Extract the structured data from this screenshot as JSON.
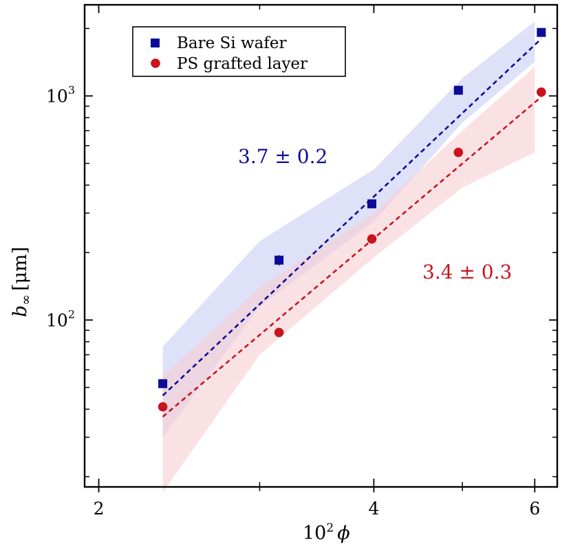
{
  "chart_data": {
    "type": "scatter",
    "xlabel_base": "10",
    "xlabel_exp": "2",
    "xlabel_var": "ϕ",
    "ylabel_var": "b",
    "ylabel_sub": "∞",
    "ylabel_unit": "[μm]",
    "xscale": "log",
    "yscale": "log",
    "xlim": [
      1.93,
      6.35
    ],
    "ylim": [
      18,
      2550
    ],
    "x_ticks": [
      {
        "value": 2,
        "label": "2"
      },
      {
        "value": 4,
        "label": "4"
      },
      {
        "value": 6,
        "label": "6"
      }
    ],
    "x_minor_ticks": [
      3,
      5
    ],
    "y_ticks": [
      {
        "value": 100,
        "base": "10",
        "exp": "2"
      },
      {
        "value": 1000,
        "base": "10",
        "exp": "3"
      }
    ],
    "y_minor_ticks": [
      20,
      30,
      40,
      50,
      60,
      70,
      80,
      90,
      200,
      300,
      400,
      500,
      600,
      700,
      800,
      900,
      2000
    ],
    "legend_position": "top-left",
    "series": [
      {
        "name": "Bare Si wafer",
        "marker": "square",
        "color": "#0c0c96",
        "band_color": "#c8cdf2",
        "x": [
          2.35,
          3.15,
          3.98,
          4.95,
          6.1
        ],
        "y": [
          52,
          185,
          330,
          1060,
          1920
        ],
        "yerr": [
          1.5,
          10,
          10,
          25,
          40
        ],
        "fit": {
          "x": [
            2.35,
            6.1
          ],
          "y": [
            46,
            1800
          ]
        },
        "band": {
          "x": [
            2.35,
            3.0,
            4.0,
            5.0,
            6.0
          ],
          "upper": [
            76,
            225,
            470,
            1200,
            2150
          ],
          "lower": [
            30,
            115,
            275,
            760,
            1420
          ]
        },
        "annotation": "3.7 ± 0.2"
      },
      {
        "name": "PS grafted layer",
        "marker": "circle",
        "color": "#c8141e",
        "band_color": "#f7cfd2",
        "x": [
          2.35,
          3.15,
          3.98,
          4.95,
          6.1
        ],
        "y": [
          41,
          88,
          230,
          560,
          1040
        ],
        "yerr": [
          1,
          3,
          6,
          15,
          30
        ],
        "fit": {
          "x": [
            2.35,
            6.1
          ],
          "y": [
            37,
            990
          ]
        },
        "band": {
          "x": [
            2.35,
            3.0,
            4.0,
            5.0,
            6.0
          ],
          "upper": [
            56,
            140,
            300,
            700,
            1350
          ],
          "lower": [
            17,
            70,
            190,
            390,
            560
          ]
        },
        "annotation": "3.4 ± 0.3"
      }
    ]
  }
}
